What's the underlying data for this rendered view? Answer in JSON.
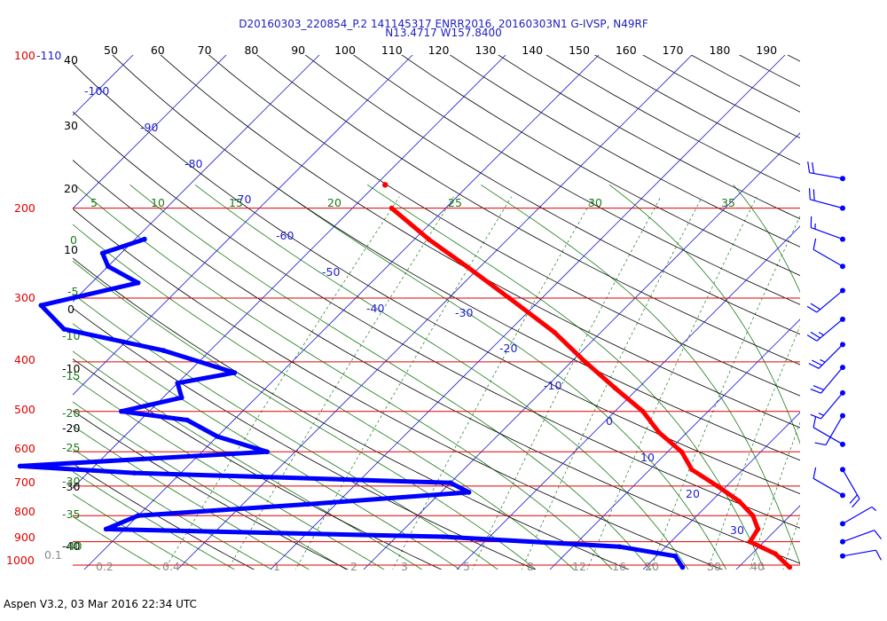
{
  "header": {
    "title_line1": "D20160303_220854_P.2 141145317 ENRR2016, 20160303N1 G-IVSP, N49RF",
    "title_line2": "N13.4717 W157.8400"
  },
  "footer": {
    "software": "Aspen V3.2, 03 Mar 2016  22:34 UTC"
  },
  "colors": {
    "isobar": "#e00000",
    "isotherm": "#2020d0",
    "dry_adiabat": "#000000",
    "moist_adiabat": "#1a7a1a",
    "mixing_ratio": "#1a7a1a",
    "temperature": "#ff0000",
    "dewpoint": "#0000ff",
    "wind_barb": "#0000ff"
  },
  "chart_data": {
    "type": "skew-t",
    "pressure_levels_hpa": [
      100,
      200,
      300,
      400,
      500,
      600,
      700,
      800,
      900,
      1000
    ],
    "pressure_labels": {
      "p100": "100",
      "p110": "-110",
      "p200": "200",
      "p300": "300",
      "p400": "400",
      "p500": "500",
      "p600": "600",
      "p700": "700",
      "p800": "800",
      "p900": "900",
      "p1000": "1000"
    },
    "top_scale_labels": [
      "50",
      "60",
      "70",
      "80",
      "90",
      "100",
      "110",
      "120",
      "130",
      "140",
      "150",
      "160",
      "170",
      "180",
      "190"
    ],
    "left_column_labels": [
      "40",
      "30",
      "20",
      "10",
      "0",
      "-10",
      "-20",
      "-30",
      "-40"
    ],
    "isotherm_labels": [
      "-100",
      "-90",
      "-80",
      "-70",
      "-60",
      "-50",
      "-40",
      "-30",
      "-20",
      "-10",
      "0",
      "10",
      "20",
      "30"
    ],
    "moist_adiabat_top_labels": [
      "5",
      "10",
      "15",
      "20",
      "25",
      "30",
      "35"
    ],
    "moist_adiabat_left_labels": [
      "0",
      "-5",
      "-10",
      "-15",
      "-20",
      "-25",
      "-30",
      "-35",
      "-40"
    ],
    "mixing_ratio_labels": [
      "0.1",
      "0.2",
      "0.4",
      "1",
      "2",
      "3",
      "5",
      "8",
      "12",
      "16",
      "20",
      "30",
      "40"
    ],
    "temperature_profile": [
      {
        "p": 200,
        "t": -55.8
      },
      {
        "p": 230,
        "t": -48.5
      },
      {
        "p": 260,
        "t": -41.5
      },
      {
        "p": 300,
        "t": -33.5
      },
      {
        "p": 350,
        "t": -25.0
      },
      {
        "p": 400,
        "t": -18.5
      },
      {
        "p": 450,
        "t": -12.5
      },
      {
        "p": 500,
        "t": -7.0
      },
      {
        "p": 550,
        "t": -3.0
      },
      {
        "p": 600,
        "t": 1.5
      },
      {
        "p": 650,
        "t": 4.5
      },
      {
        "p": 700,
        "t": 9.0
      },
      {
        "p": 750,
        "t": 13.0
      },
      {
        "p": 800,
        "t": 16.0
      },
      {
        "p": 850,
        "t": 18.0
      },
      {
        "p": 900,
        "t": 18.5
      },
      {
        "p": 950,
        "t": 22.5
      },
      {
        "p": 1010,
        "t": 25.5
      }
    ],
    "temperature_isolated_point": {
      "p": 180,
      "t": -59.0
    },
    "dewpoint_profile": [
      {
        "p": 230,
        "td": -79.0
      },
      {
        "p": 245,
        "td": -82.0
      },
      {
        "p": 260,
        "td": -80.0
      },
      {
        "p": 280,
        "td": -75.0
      },
      {
        "p": 310,
        "td": -83.0
      },
      {
        "p": 345,
        "td": -78.0
      },
      {
        "p": 380,
        "td": -65.0
      },
      {
        "p": 420,
        "td": -55.0
      },
      {
        "p": 440,
        "td": -60.0
      },
      {
        "p": 470,
        "td": -58.0
      },
      {
        "p": 500,
        "td": -63.0
      },
      {
        "p": 520,
        "td": -55.0
      },
      {
        "p": 560,
        "td": -50.0
      },
      {
        "p": 600,
        "td": -43.0
      },
      {
        "p": 640,
        "td": -68.0
      },
      {
        "p": 660,
        "td": -55.0
      },
      {
        "p": 690,
        "td": -20.0
      },
      {
        "p": 720,
        "td": -17.0
      },
      {
        "p": 760,
        "td": -33.0
      },
      {
        "p": 800,
        "td": -50.0
      },
      {
        "p": 850,
        "td": -52.0
      },
      {
        "p": 880,
        "td": -15.0
      },
      {
        "p": 920,
        "td": 5.0
      },
      {
        "p": 960,
        "td": 12.0
      },
      {
        "p": 1010,
        "td": 14.0
      }
    ],
    "wind_barbs": [
      {
        "p": 150,
        "dir": 280,
        "kt": 20
      },
      {
        "p": 175,
        "dir": 280,
        "kt": 20
      },
      {
        "p": 200,
        "dir": 285,
        "kt": 20
      },
      {
        "p": 230,
        "dir": 290,
        "kt": 15
      },
      {
        "p": 260,
        "dir": 300,
        "kt": 10
      },
      {
        "p": 290,
        "dir": 230,
        "kt": 20
      },
      {
        "p": 330,
        "dir": 230,
        "kt": 25
      },
      {
        "p": 370,
        "dir": 225,
        "kt": 25
      },
      {
        "p": 410,
        "dir": 220,
        "kt": 20
      },
      {
        "p": 460,
        "dir": 220,
        "kt": 15
      },
      {
        "p": 510,
        "dir": 210,
        "kt": 10
      },
      {
        "p": 580,
        "dir": 300,
        "kt": 10
      },
      {
        "p": 650,
        "dir": 150,
        "kt": 20
      },
      {
        "p": 730,
        "dir": 300,
        "kt": 10
      },
      {
        "p": 830,
        "dir": 60,
        "kt": 5
      },
      {
        "p": 900,
        "dir": 70,
        "kt": 10
      },
      {
        "p": 960,
        "dir": 80,
        "kt": 10
      }
    ]
  }
}
